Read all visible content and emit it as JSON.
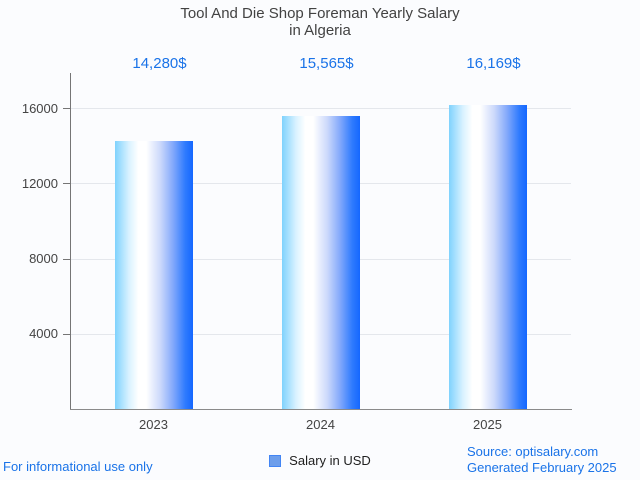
{
  "title": {
    "line1": "Tool And Die Shop Foreman Yearly Salary",
    "line2": "in Algeria"
  },
  "chart_data": {
    "type": "bar",
    "title": "Tool And Die Shop Foreman Yearly Salary in Algeria",
    "categories": [
      "2023",
      "2024",
      "2025"
    ],
    "values": [
      14280,
      15565,
      16169
    ],
    "value_labels": [
      "14,280$",
      "15,565$",
      "16,169$"
    ],
    "series": [
      {
        "name": "Salary in USD",
        "values": [
          14280,
          15565,
          16169
        ]
      }
    ],
    "xlabel": "",
    "ylabel": "",
    "ylim": [
      0,
      17875
    ],
    "yticks": [
      4000,
      8000,
      12000,
      16000
    ],
    "grid": true,
    "legend_position": "bottom",
    "annotation_color": "#1a73e8",
    "bar_color_left": "#7fd2fd",
    "bar_color_mid": "#ffffff",
    "bar_color_right": "#1467ff"
  },
  "legend": {
    "label": "Salary in USD",
    "marker_color": "#6d9eeb"
  },
  "footer": {
    "left": "For informational use only",
    "source": "Source: optisalary.com",
    "generated": "Generated February 2025"
  },
  "colors": {
    "accent_blue": "#1a73e8",
    "title_gray": "#424242",
    "axis_gray": "#757575",
    "gridline": "#e4e7ec",
    "background": "#fbfcfe"
  }
}
